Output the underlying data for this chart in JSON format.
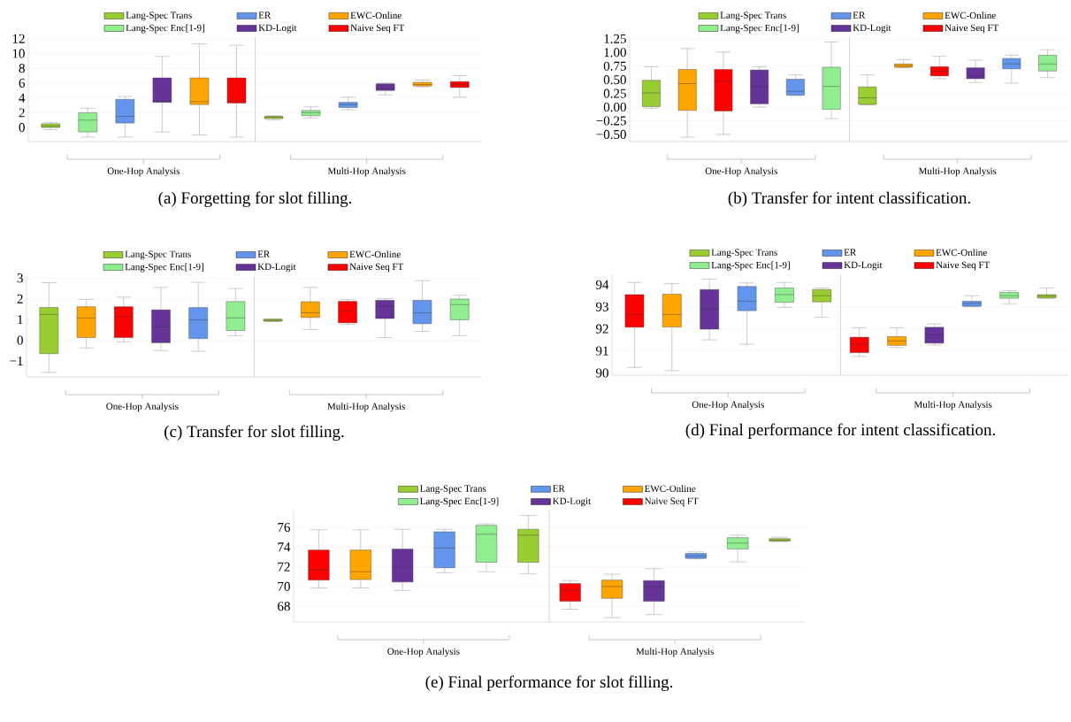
{
  "chart_data": [
    {
      "type": "box",
      "title": "(a) Forgetting for slot filling.",
      "categories": [
        null,
        null,
        null,
        null,
        null,
        null,
        null,
        null,
        null,
        null,
        null,
        null
      ],
      "ylim": [
        -1.9,
        12.2
      ],
      "yticks": [
        0,
        2,
        4,
        6,
        8,
        10,
        12
      ],
      "grid": "y",
      "legend": "top",
      "annotations": [
        "One-Hop Analysis",
        "Multi-Hop Analysis"
      ],
      "series": [
        {
          "name": "Lang-Spec Trans",
          "color": "#9acd32",
          "boxes": [
            {
              "low": -0.3,
              "q1": 0.0,
              "median": 0.2,
              "q3": 0.5,
              "high": 0.7
            },
            null,
            null,
            null,
            null,
            null,
            {
              "low": 1.0,
              "q1": 1.2,
              "median": 1.4,
              "q3": 1.5,
              "high": 1.6
            },
            null,
            null,
            null,
            null,
            null
          ]
        },
        {
          "name": "Lang-Spec Enc[1-9]",
          "color": "#90ee90",
          "boxes": [
            null,
            {
              "low": -1.3,
              "q1": -0.6,
              "median": 1.0,
              "q3": 2.0,
              "high": 2.6
            },
            null,
            null,
            null,
            null,
            null,
            {
              "low": 1.3,
              "q1": 1.6,
              "median": 2.0,
              "q3": 2.3,
              "high": 2.8
            },
            null,
            null,
            null,
            null
          ]
        },
        {
          "name": "ER",
          "color": "#6495ed",
          "boxes": [
            null,
            null,
            {
              "low": -1.3,
              "q1": 0.6,
              "median": 1.5,
              "q3": 3.8,
              "high": 4.2
            },
            null,
            null,
            null,
            null,
            null,
            {
              "low": 2.4,
              "q1": 2.7,
              "median": 3.1,
              "q3": 3.4,
              "high": 4.1
            },
            null,
            null,
            null
          ]
        },
        {
          "name": "KD-Logit",
          "color": "#663399",
          "boxes": [
            null,
            null,
            null,
            {
              "low": -0.6,
              "q1": 3.4,
              "median": 3.5,
              "q3": 6.7,
              "high": 9.6
            },
            null,
            null,
            null,
            null,
            null,
            {
              "low": 4.4,
              "q1": 5.0,
              "median": 5.3,
              "q3": 5.9,
              "high": 6.0
            },
            null,
            null
          ]
        },
        {
          "name": "EWC-Online",
          "color": "#ffa500",
          "boxes": [
            null,
            null,
            null,
            null,
            {
              "low": -1.0,
              "q1": 3.1,
              "median": 3.5,
              "q3": 6.7,
              "high": 11.3
            },
            null,
            null,
            null,
            null,
            null,
            {
              "low": 5.5,
              "q1": 5.6,
              "median": 5.8,
              "q3": 6.1,
              "high": 6.4
            },
            null
          ]
        },
        {
          "name": "Naive Seq FT",
          "color": "#ff0000",
          "boxes": [
            null,
            null,
            null,
            null,
            null,
            {
              "low": -1.3,
              "q1": 3.3,
              "median": 3.6,
              "q3": 6.7,
              "high": 11.1
            },
            null,
            null,
            null,
            null,
            null,
            {
              "low": 4.1,
              "q1": 5.4,
              "median": 5.8,
              "q3": 6.2,
              "high": 7.0
            }
          ]
        }
      ]
    },
    {
      "type": "box",
      "title": "(b) Transfer for intent classification.",
      "categories": [
        null,
        null,
        null,
        null,
        null,
        null,
        null,
        null,
        null,
        null,
        null,
        null
      ],
      "ylim": [
        -0.63,
        1.28
      ],
      "yticks": [
        {
          "value": -0.5,
          "label": "−0.50"
        },
        {
          "value": -0.25,
          "label": "−0.25"
        },
        {
          "value": 0,
          "label": "0.00"
        },
        {
          "value": 0.25,
          "label": "0.25"
        },
        {
          "value": 0.5,
          "label": "0.50"
        },
        {
          "value": 0.75,
          "label": "0.75"
        },
        {
          "value": 1,
          "label": "1.00"
        },
        {
          "value": 1.25,
          "label": "1.25"
        }
      ],
      "grid": "y",
      "legend": "top",
      "annotations": [
        "One-Hop Analysis",
        "Multi-Hop Analysis"
      ],
      "series": [
        {
          "name": "Lang-Spec Trans",
          "color": "#9acd32",
          "boxes": [
            {
              "low": -0.02,
              "q1": 0.01,
              "median": 0.26,
              "q3": 0.49,
              "high": 0.74
            },
            null,
            null,
            null,
            null,
            null,
            {
              "low": 0.04,
              "q1": 0.05,
              "median": 0.17,
              "q3": 0.37,
              "high": 0.59
            },
            null,
            null,
            null,
            null,
            null
          ]
        },
        {
          "name": "Lang-Spec Enc[1-9]",
          "color": "#90ee90",
          "boxes": [
            null,
            null,
            null,
            null,
            null,
            {
              "low": -0.21,
              "q1": -0.04,
              "median": 0.38,
              "q3": 0.73,
              "high": 1.19
            },
            null,
            null,
            null,
            null,
            null,
            {
              "low": 0.54,
              "q1": 0.66,
              "median": 0.79,
              "q3": 0.95,
              "high": 1.05
            }
          ]
        },
        {
          "name": "ER",
          "color": "#6495ed",
          "boxes": [
            null,
            null,
            null,
            null,
            {
              "low": 0.21,
              "q1": 0.22,
              "median": 0.29,
              "q3": 0.51,
              "high": 0.59
            },
            null,
            null,
            null,
            null,
            null,
            {
              "low": 0.44,
              "q1": 0.7,
              "median": 0.79,
              "q3": 0.89,
              "high": 0.95
            },
            null
          ]
        },
        {
          "name": "KD-Logit",
          "color": "#663399",
          "boxes": [
            null,
            null,
            null,
            {
              "low": 0.0,
              "q1": 0.06,
              "median": 0.37,
              "q3": 0.68,
              "high": 0.74
            },
            null,
            null,
            null,
            null,
            null,
            {
              "low": 0.45,
              "q1": 0.52,
              "median": 0.57,
              "q3": 0.72,
              "high": 0.86
            },
            null,
            null
          ]
        },
        {
          "name": "EWC-Online",
          "color": "#ffa500",
          "boxes": [
            null,
            {
              "low": -0.55,
              "q1": -0.06,
              "median": 0.43,
              "q3": 0.69,
              "high": 1.07
            },
            null,
            null,
            null,
            null,
            null,
            {
              "low": 0.72,
              "q1": 0.73,
              "median": 0.76,
              "q3": 0.79,
              "high": 0.87
            },
            null,
            null,
            null,
            null
          ]
        },
        {
          "name": "Naive Seq FT",
          "color": "#ff0000",
          "boxes": [
            null,
            null,
            {
              "low": -0.5,
              "q1": -0.07,
              "median": 0.47,
              "q3": 0.69,
              "high": 1.01
            },
            null,
            null,
            null,
            null,
            null,
            {
              "low": 0.52,
              "q1": 0.57,
              "median": 0.66,
              "q3": 0.74,
              "high": 0.93
            },
            null,
            null,
            null
          ]
        }
      ]
    },
    {
      "type": "box",
      "title": "(c) Transfer for slot filling.",
      "categories": [
        null,
        null,
        null,
        null,
        null,
        null,
        null,
        null,
        null,
        null,
        null,
        null
      ],
      "ylim": [
        -1.77,
        3.1
      ],
      "yticks": [
        {
          "value": -1,
          "label": "−1"
        },
        0,
        1,
        2,
        3
      ],
      "grid": "y",
      "legend": "top",
      "annotations": [
        "One-Hop Analysis",
        "Multi-Hop Analysis"
      ],
      "series": [
        {
          "name": "Lang-Spec Trans",
          "color": "#9acd32",
          "boxes": [
            {
              "low": -1.55,
              "q1": -0.65,
              "median": 1.25,
              "q3": 1.58,
              "high": 2.78
            },
            null,
            null,
            null,
            null,
            null,
            {
              "low": 0.9,
              "q1": 0.92,
              "median": 0.96,
              "q3": 1.02,
              "high": 1.03
            },
            null,
            null,
            null,
            null,
            null
          ]
        },
        {
          "name": "Lang-Spec Enc[1-9]",
          "color": "#90ee90",
          "boxes": [
            null,
            null,
            null,
            null,
            null,
            {
              "low": 0.22,
              "q1": 0.47,
              "median": 1.08,
              "q3": 1.87,
              "high": 2.5
            },
            null,
            null,
            null,
            null,
            null,
            {
              "low": 0.22,
              "q1": 0.99,
              "median": 1.72,
              "q3": 1.99,
              "high": 2.17
            }
          ]
        },
        {
          "name": "ER",
          "color": "#6495ed",
          "boxes": [
            null,
            null,
            null,
            null,
            {
              "low": -0.53,
              "q1": 0.08,
              "median": 0.98,
              "q3": 1.58,
              "high": 2.8
            },
            null,
            null,
            null,
            null,
            null,
            {
              "low": 0.43,
              "q1": 0.8,
              "median": 1.32,
              "q3": 1.93,
              "high": 2.88
            },
            null
          ]
        },
        {
          "name": "KD-Logit",
          "color": "#663399",
          "boxes": [
            null,
            null,
            null,
            {
              "low": -0.5,
              "q1": -0.12,
              "median": 0.65,
              "q3": 1.47,
              "high": 2.55
            },
            null,
            null,
            null,
            null,
            null,
            {
              "low": 0.13,
              "q1": 1.05,
              "median": 1.65,
              "q3": 1.93,
              "high": 2.02
            },
            null,
            null
          ]
        },
        {
          "name": "EWC-Online",
          "color": "#ffa500",
          "boxes": [
            null,
            {
              "low": -0.37,
              "q1": 0.13,
              "median": 1.08,
              "q3": 1.62,
              "high": 1.97
            },
            null,
            null,
            null,
            null,
            null,
            {
              "low": 0.52,
              "q1": 1.1,
              "median": 1.33,
              "q3": 1.86,
              "high": 2.55
            },
            null,
            null,
            null,
            null
          ]
        },
        {
          "name": "Naive Seq FT",
          "color": "#ff0000",
          "boxes": [
            null,
            null,
            {
              "low": -0.08,
              "q1": 0.13,
              "median": 1.15,
              "q3": 1.62,
              "high": 2.08
            },
            null,
            null,
            null,
            null,
            null,
            {
              "low": 0.76,
              "q1": 0.84,
              "median": 1.4,
              "q3": 1.88,
              "high": 1.97
            },
            null,
            null,
            null
          ]
        }
      ]
    },
    {
      "type": "box",
      "title": "(d) Final performance for intent classification.",
      "categories": [
        null,
        null,
        null,
        null,
        null,
        null,
        null,
        null,
        null,
        null,
        null,
        null
      ],
      "ylim": [
        89.9,
        94.47
      ],
      "yticks": [
        90,
        91,
        92,
        93,
        94
      ],
      "grid": "y",
      "legend": "top",
      "annotations": [
        "One-Hop Analysis",
        "Multi-Hop Analysis"
      ],
      "series": [
        {
          "name": "Lang-Spec Trans",
          "color": "#9acd32",
          "boxes": [
            null,
            null,
            null,
            null,
            null,
            {
              "low": 92.52,
              "q1": 93.22,
              "median": 93.5,
              "q3": 93.78,
              "high": 93.85
            },
            null,
            null,
            null,
            null,
            null,
            {
              "low": 93.38,
              "q1": 93.4,
              "median": 93.48,
              "q3": 93.55,
              "high": 93.85
            }
          ]
        },
        {
          "name": "Lang-Spec Enc[1-9]",
          "color": "#90ee90",
          "boxes": [
            null,
            null,
            null,
            null,
            {
              "low": 92.97,
              "q1": 93.2,
              "median": 93.55,
              "q3": 93.85,
              "high": 94.1
            },
            null,
            null,
            null,
            null,
            null,
            {
              "low": 93.12,
              "q1": 93.38,
              "median": 93.5,
              "q3": 93.65,
              "high": 93.73
            },
            null
          ]
        },
        {
          "name": "ER",
          "color": "#6495ed",
          "boxes": [
            null,
            null,
            null,
            {
              "low": 91.3,
              "q1": 92.82,
              "median": 93.25,
              "q3": 93.92,
              "high": 94.08
            },
            null,
            null,
            null,
            null,
            null,
            {
              "low": 93.0,
              "q1": 93.02,
              "median": 93.15,
              "q3": 93.25,
              "high": 93.5
            },
            null,
            null
          ]
        },
        {
          "name": "KD-Logit",
          "color": "#663399",
          "boxes": [
            null,
            null,
            {
              "low": 91.5,
              "q1": 91.98,
              "median": 92.9,
              "q3": 93.78,
              "high": 94.25
            },
            null,
            null,
            null,
            null,
            null,
            {
              "low": 91.27,
              "q1": 91.35,
              "median": 91.72,
              "q3": 92.07,
              "high": 92.22
            },
            null,
            null,
            null
          ]
        },
        {
          "name": "EWC-Online",
          "color": "#ffa500",
          "boxes": [
            null,
            {
              "low": 90.1,
              "q1": 92.08,
              "median": 92.65,
              "q3": 93.57,
              "high": 94.05
            },
            null,
            null,
            null,
            null,
            null,
            {
              "low": 91.15,
              "q1": 91.25,
              "median": 91.45,
              "q3": 91.65,
              "high": 92.05
            },
            null,
            null,
            null,
            null
          ]
        },
        {
          "name": "Naive Seq FT",
          "color": "#ff0000",
          "boxes": [
            {
              "low": 90.25,
              "q1": 92.07,
              "median": 92.65,
              "q3": 93.55,
              "high": 94.1
            },
            null,
            null,
            null,
            null,
            null,
            {
              "low": 90.75,
              "q1": 90.92,
              "median": 91.3,
              "q3": 91.62,
              "high": 92.05
            },
            null,
            null,
            null,
            null,
            null
          ]
        }
      ]
    },
    {
      "type": "box",
      "title": "(e) Final performance for slot filling.",
      "categories": [
        null,
        null,
        null,
        null,
        null,
        null,
        null,
        null,
        null,
        null,
        null,
        null
      ],
      "ylim": [
        66.4,
        77.7
      ],
      "yticks": [
        68,
        70,
        72,
        74,
        76
      ],
      "grid": "y",
      "legend": "top",
      "annotations": [
        "One-Hop Analysis",
        "Multi-Hop Analysis"
      ],
      "series": [
        {
          "name": "Lang-Spec Trans",
          "color": "#9acd32",
          "boxes": [
            null,
            null,
            null,
            null,
            null,
            {
              "low": 71.3,
              "q1": 72.45,
              "median": 75.2,
              "q3": 75.8,
              "high": 77.2
            },
            null,
            null,
            null,
            null,
            null,
            {
              "low": 74.55,
              "q1": 74.6,
              "median": 74.7,
              "q3": 74.85,
              "high": 75.0
            }
          ]
        },
        {
          "name": "Lang-Spec Enc[1-9]",
          "color": "#90ee90",
          "boxes": [
            null,
            null,
            null,
            null,
            {
              "low": 71.5,
              "q1": 72.45,
              "median": 75.3,
              "q3": 76.2,
              "high": 76.35
            },
            null,
            null,
            null,
            null,
            null,
            {
              "low": 72.5,
              "q1": 73.8,
              "median": 74.4,
              "q3": 74.95,
              "high": 75.2
            },
            null
          ]
        },
        {
          "name": "ER",
          "color": "#6495ed",
          "boxes": [
            null,
            null,
            null,
            {
              "low": 71.4,
              "q1": 71.9,
              "median": 73.9,
              "q3": 75.55,
              "high": 75.8
            },
            null,
            null,
            null,
            null,
            null,
            {
              "low": 72.8,
              "q1": 72.85,
              "median": 73.1,
              "q3": 73.35,
              "high": 73.5
            },
            null,
            null
          ]
        },
        {
          "name": "KD-Logit",
          "color": "#663399",
          "boxes": [
            null,
            null,
            {
              "low": 69.6,
              "q1": 70.45,
              "median": 71.95,
              "q3": 73.8,
              "high": 75.8
            },
            null,
            null,
            null,
            null,
            null,
            {
              "low": 67.15,
              "q1": 68.5,
              "median": 70.0,
              "q3": 70.6,
              "high": 71.8
            },
            null,
            null,
            null
          ]
        },
        {
          "name": "EWC-Online",
          "color": "#ffa500",
          "boxes": [
            null,
            {
              "low": 69.85,
              "q1": 70.7,
              "median": 71.5,
              "q3": 73.7,
              "high": 75.75
            },
            null,
            null,
            null,
            null,
            null,
            {
              "low": 66.85,
              "q1": 68.8,
              "median": 70.0,
              "q3": 70.65,
              "high": 71.25
            },
            null,
            null,
            null,
            null
          ]
        },
        {
          "name": "Naive Seq FT",
          "color": "#ff0000",
          "boxes": [
            {
              "low": 69.85,
              "q1": 70.65,
              "median": 71.7,
              "q3": 73.7,
              "high": 75.75
            },
            null,
            null,
            null,
            null,
            null,
            {
              "low": 67.7,
              "q1": 68.5,
              "median": 69.6,
              "q3": 70.3,
              "high": 70.6
            },
            null,
            null,
            null,
            null,
            null
          ]
        }
      ]
    }
  ]
}
